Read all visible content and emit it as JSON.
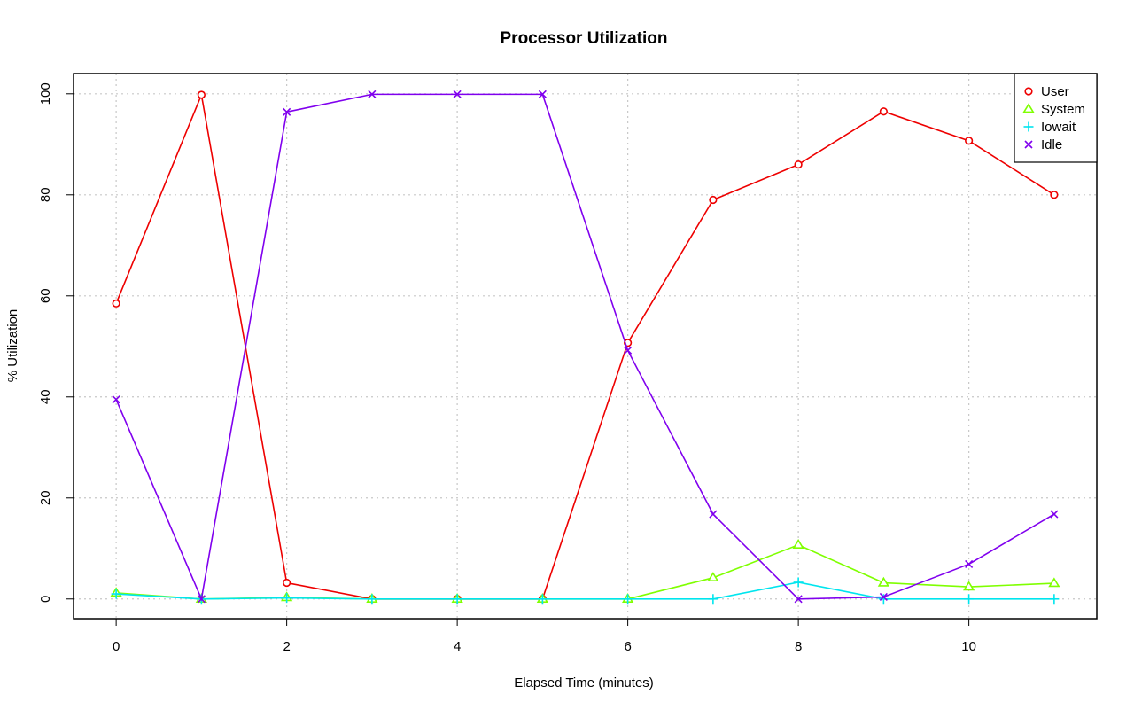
{
  "chart_data": {
    "type": "line",
    "title": "Processor Utilization",
    "xlabel": "Elapsed Time (minutes)",
    "ylabel": "% Utilization",
    "x": [
      0,
      1,
      2,
      3,
      4,
      5,
      6,
      7,
      8,
      9,
      10,
      11
    ],
    "xlim": [
      -0.5,
      11.5
    ],
    "ylim": [
      -3.9,
      104
    ],
    "xticks": [
      0,
      2,
      4,
      6,
      8,
      10
    ],
    "yticks": [
      0,
      20,
      40,
      60,
      80,
      100
    ],
    "grid": true,
    "legend_position": "top-right",
    "series": [
      {
        "name": "User",
        "color": "#ee0000",
        "marker": "circle",
        "values": [
          58.5,
          99.8,
          3.2,
          0,
          0,
          0,
          50.7,
          79,
          86,
          96.5,
          90.7,
          80
        ]
      },
      {
        "name": "System",
        "color": "#7fff00",
        "marker": "triangle",
        "values": [
          1.2,
          0,
          0.3,
          0,
          0,
          0,
          0,
          4.2,
          10.7,
          3.2,
          2.4,
          3.1
        ]
      },
      {
        "name": "Iowait",
        "color": "#00e5ee",
        "marker": "plus",
        "values": [
          1,
          0,
          0.2,
          0,
          0,
          0,
          0,
          0,
          3.3,
          0,
          0,
          0
        ]
      },
      {
        "name": "Idle",
        "color": "#8000ee",
        "marker": "cross",
        "values": [
          39.5,
          0,
          96.4,
          99.9,
          99.9,
          99.9,
          49.2,
          16.8,
          0,
          0.4,
          6.9,
          16.8
        ]
      }
    ]
  }
}
